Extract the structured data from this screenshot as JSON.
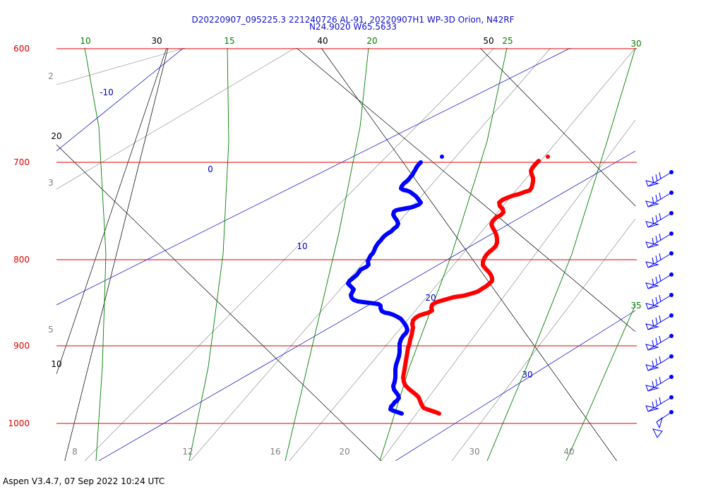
{
  "title": "D20220907_095225.3 221240726 AL-91, 20220907H1 WP-3D Orion, N42RF",
  "subtitle": "N24.9020 W65.5633",
  "footer": "Aspen V3.4.7, 07 Sep 2022  10:24 UTC",
  "colors": {
    "isobar": "#e00000",
    "isotherm": "#000000",
    "dry_adiabat": "#808080",
    "moist_adiabat": "#008000",
    "mixing_ratio": "#0000c0",
    "temperature": "#ff0000",
    "dewpoint": "#0000ff",
    "wind_barb": "#0000ff"
  },
  "chart_data": {
    "type": "line",
    "diagram": "skew-T log-P",
    "pressure_range_hpa": [
      1000,
      600
    ],
    "pressure_labels": [
      "600",
      "700",
      "800",
      "900",
      "1000"
    ],
    "isotherm_labels": [
      "10",
      "20",
      "30",
      "40",
      "50"
    ],
    "dry_adiabat_labels": [
      "2",
      "3",
      "5",
      "8",
      "12",
      "16",
      "20",
      "30",
      "40"
    ],
    "moist_adiabat_labels": [
      "10",
      "15",
      "20",
      "25",
      "30",
      "35"
    ],
    "mixing_ratio_labels": [
      "-10",
      "0",
      "10",
      "20",
      "30"
    ],
    "series": [
      {
        "points": [
          [
            596,
            230
          ],
          [
            593,
            233
          ],
          [
            590,
            237
          ],
          [
            588,
            241
          ],
          [
            586,
            244
          ],
          [
            584,
            248
          ],
          [
            582,
            250
          ],
          [
            579,
            254
          ],
          [
            576,
            257
          ],
          [
            572,
            260
          ],
          [
            569,
            264
          ],
          [
            568,
            267
          ],
          [
            571,
            269
          ],
          [
            576,
            270
          ],
          [
            581,
            272
          ],
          [
            585,
            275
          ],
          [
            589,
            278
          ],
          [
            593,
            283
          ],
          [
            596,
            287
          ],
          [
            593,
            290
          ],
          [
            588,
            292
          ],
          [
            582,
            294
          ],
          [
            576,
            295
          ],
          [
            571,
            296
          ],
          [
            565,
            297
          ],
          [
            561,
            298
          ],
          [
            558,
            300
          ],
          [
            557,
            304
          ],
          [
            559,
            308
          ],
          [
            562,
            312
          ],
          [
            564,
            317
          ],
          [
            562,
            321
          ],
          [
            558,
            324
          ],
          [
            554,
            328
          ],
          [
            549,
            331
          ],
          [
            545,
            334
          ],
          [
            542,
            337
          ],
          [
            539,
            341
          ],
          [
            536,
            344
          ],
          [
            534,
            347
          ],
          [
            532,
            350
          ],
          [
            530,
            355
          ],
          [
            528,
            359
          ],
          [
            525,
            362
          ],
          [
            523,
            366
          ],
          [
            521,
            370
          ],
          [
            522,
            375
          ],
          [
            519,
            378
          ],
          [
            515,
            380
          ],
          [
            511,
            382
          ],
          [
            508,
            386
          ],
          [
            505,
            390
          ],
          [
            500,
            394
          ],
          [
            495,
            398
          ],
          [
            493,
            402
          ],
          [
            497,
            406
          ],
          [
            501,
            410
          ],
          [
            499,
            414
          ],
          [
            497,
            418
          ],
          [
            498,
            422
          ],
          [
            501,
            425
          ],
          [
            507,
            427
          ],
          [
            514,
            428
          ],
          [
            522,
            429
          ],
          [
            530,
            430
          ],
          [
            536,
            431
          ],
          [
            539,
            433
          ],
          [
            539,
            437
          ],
          [
            541,
            441
          ],
          [
            545,
            443
          ],
          [
            551,
            444
          ],
          [
            557,
            446
          ],
          [
            563,
            449
          ],
          [
            568,
            452
          ],
          [
            571,
            456
          ],
          [
            574,
            460
          ],
          [
            576,
            464
          ],
          [
            577,
            468
          ],
          [
            575,
            472
          ],
          [
            571,
            476
          ],
          [
            568,
            481
          ],
          [
            566,
            487
          ],
          [
            566,
            493
          ],
          [
            566,
            499
          ],
          [
            565,
            505
          ],
          [
            563,
            511
          ],
          [
            561,
            517
          ],
          [
            560,
            523
          ],
          [
            560,
            529
          ],
          [
            560,
            535
          ],
          [
            559,
            541
          ],
          [
            557,
            547
          ],
          [
            558,
            552
          ],
          [
            561,
            556
          ],
          [
            564,
            560
          ],
          [
            565,
            564
          ],
          [
            562,
            568
          ],
          [
            559,
            570
          ],
          [
            557,
            573
          ],
          [
            554,
            576
          ],
          [
            553,
            580
          ],
          [
            557,
            582
          ],
          [
            563,
            584
          ],
          [
            569,
            586
          ]
        ]
      },
      {
        "points": [
          [
            763,
            228
          ],
          [
            760,
            231
          ],
          [
            757,
            234
          ],
          [
            754,
            238
          ],
          [
            752,
            242
          ],
          [
            753,
            247
          ],
          [
            755,
            252
          ],
          [
            755,
            257
          ],
          [
            754,
            262
          ],
          [
            753,
            266
          ],
          [
            750,
            270
          ],
          [
            743,
            272
          ],
          [
            735,
            275
          ],
          [
            727,
            277
          ],
          [
            719,
            280
          ],
          [
            712,
            283
          ],
          [
            707,
            287
          ],
          [
            708,
            292
          ],
          [
            712,
            296
          ],
          [
            713,
            301
          ],
          [
            709,
            305
          ],
          [
            703,
            308
          ],
          [
            698,
            313
          ],
          [
            696,
            318
          ],
          [
            698,
            323
          ],
          [
            701,
            328
          ],
          [
            703,
            333
          ],
          [
            704,
            338
          ],
          [
            704,
            344
          ],
          [
            702,
            349
          ],
          [
            698,
            353
          ],
          [
            693,
            357
          ],
          [
            689,
            361
          ],
          [
            686,
            366
          ],
          [
            684,
            371
          ],
          [
            684,
            376
          ],
          [
            688,
            381
          ],
          [
            692,
            385
          ],
          [
            695,
            389
          ],
          [
            697,
            394
          ],
          [
            697,
            398
          ],
          [
            693,
            402
          ],
          [
            688,
            406
          ],
          [
            683,
            409
          ],
          [
            677,
            413
          ],
          [
            671,
            415
          ],
          [
            664,
            417
          ],
          [
            657,
            419
          ],
          [
            650,
            420
          ],
          [
            643,
            421
          ],
          [
            636,
            423
          ],
          [
            629,
            425
          ],
          [
            622,
            427
          ],
          [
            616,
            429
          ],
          [
            612,
            432
          ],
          [
            611,
            436
          ],
          [
            612,
            440
          ],
          [
            607,
            443
          ],
          [
            600,
            445
          ],
          [
            594,
            447
          ],
          [
            589,
            450
          ],
          [
            585,
            454
          ],
          [
            584,
            459
          ],
          [
            585,
            464
          ],
          [
            584,
            469
          ],
          [
            583,
            475
          ],
          [
            581,
            481
          ],
          [
            580,
            487
          ],
          [
            578,
            493
          ],
          [
            577,
            499
          ],
          [
            576,
            505
          ],
          [
            575,
            511
          ],
          [
            574,
            517
          ],
          [
            573,
            523
          ],
          [
            572,
            529
          ],
          [
            571,
            535
          ],
          [
            572,
            541
          ],
          [
            574,
            546
          ],
          [
            579,
            551
          ],
          [
            584,
            555
          ],
          [
            589,
            559
          ],
          [
            593,
            563
          ],
          [
            595,
            568
          ],
          [
            597,
            573
          ],
          [
            600,
            578
          ],
          [
            605,
            580
          ],
          [
            611,
            582
          ],
          [
            617,
            584
          ],
          [
            622,
            586
          ]
        ]
      }
    ],
    "markers": [
      {
        "point": [
          626,
          222
        ]
      },
      {
        "point": [
          776,
          222
        ]
      }
    ],
    "wind_barbs": [
      {
        "y": 244,
        "flags": 3
      },
      {
        "y": 273,
        "flags": 3
      },
      {
        "y": 302,
        "flags": 3
      },
      {
        "y": 331,
        "flags": 3
      },
      {
        "y": 359,
        "flags": 3
      },
      {
        "y": 389,
        "flags": 3
      },
      {
        "y": 418,
        "flags": 3
      },
      {
        "y": 447,
        "flags": 3
      },
      {
        "y": 476,
        "flags": 3
      },
      {
        "y": 505,
        "flags": 3
      },
      {
        "y": 534,
        "flags": 3
      },
      {
        "y": 563,
        "flags": 3
      },
      {
        "y": 584,
        "flags": 1
      }
    ]
  }
}
